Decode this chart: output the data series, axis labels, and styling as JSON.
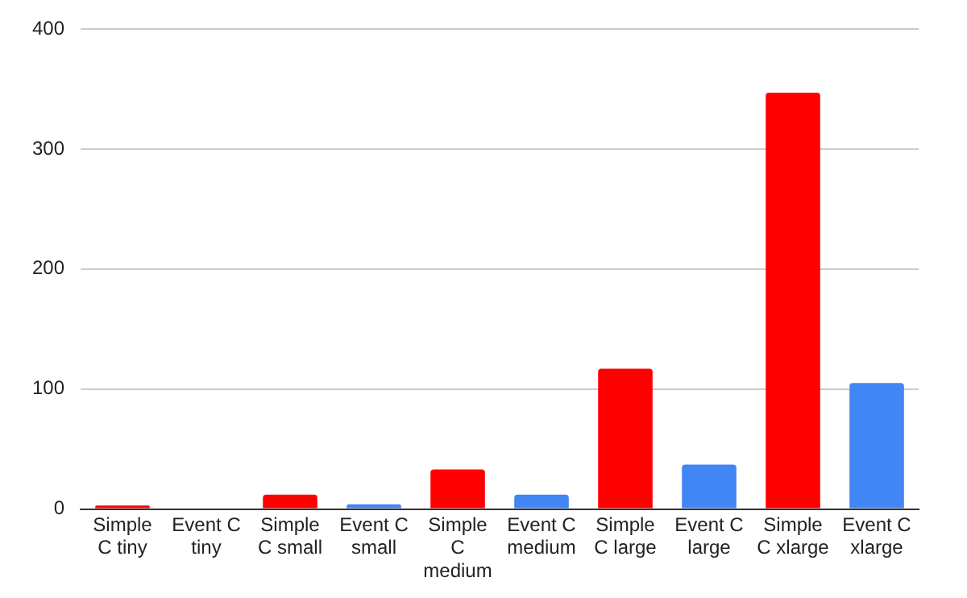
{
  "chart_data": {
    "type": "bar",
    "categories": [
      "Simple C tiny",
      "Event C tiny",
      "Simple C small",
      "Event C small",
      "Simple C medium",
      "Event C medium",
      "Simple C large",
      "Event C large",
      "Simple C xlarge",
      "Event C xlarge"
    ],
    "values": [
      3,
      0,
      12,
      4,
      33,
      12,
      117,
      37,
      347,
      105
    ],
    "colors": [
      "#ff0000",
      "#4285f4",
      "#ff0000",
      "#4285f4",
      "#ff0000",
      "#4285f4",
      "#ff0000",
      "#4285f4",
      "#ff0000",
      "#4285f4"
    ],
    "ylim": [
      0,
      400
    ],
    "yticks": [
      0,
      100,
      200,
      300,
      400
    ],
    "grid": "y",
    "legend": false
  }
}
